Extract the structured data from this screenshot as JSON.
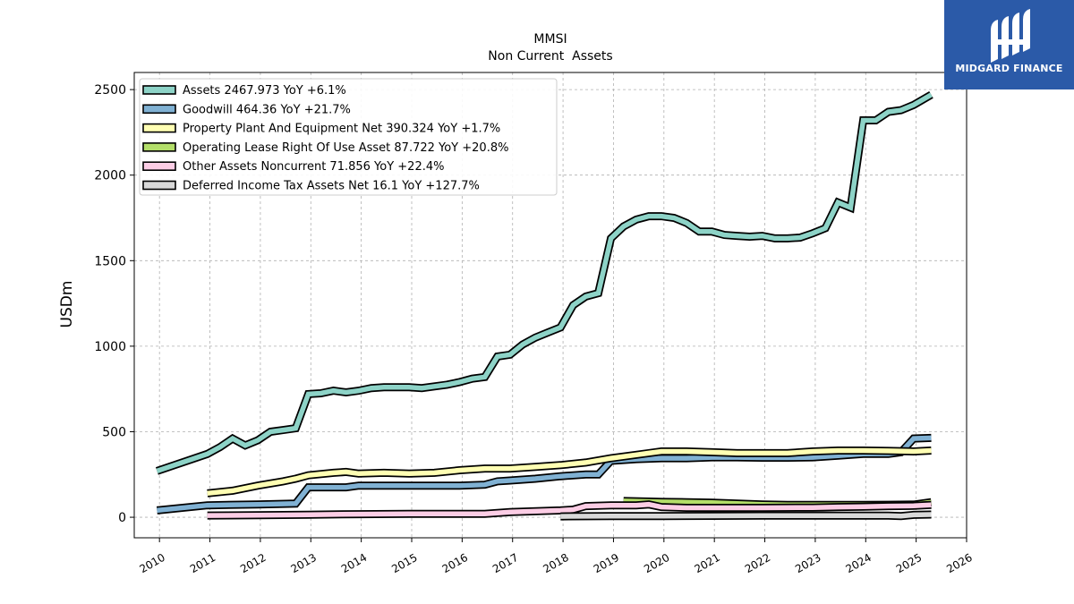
{
  "logo": {
    "text": "MIDGARD FINANCE"
  },
  "chart_data": {
    "type": "line",
    "title": "MMSI",
    "subtitle": "Non Current  Assets",
    "ylabel": "USDm",
    "xlabel": "",
    "xlim": [
      2009.5,
      2026.0
    ],
    "ylim": [
      -120,
      2600
    ],
    "xticks": [
      2010,
      2011,
      2012,
      2013,
      2014,
      2015,
      2016,
      2017,
      2018,
      2019,
      2020,
      2021,
      2022,
      2023,
      2024,
      2025,
      2026
    ],
    "yticks": [
      0,
      500,
      1000,
      1500,
      2000,
      2500
    ],
    "grid": true,
    "legend_position": "top-left",
    "series": [
      {
        "name": "Assets",
        "legend": "Assets  2467.973 YoY +6.1%",
        "color": "#8dd3c7",
        "points": [
          [
            2009.95,
            270
          ],
          [
            2010.95,
            370
          ],
          [
            2011.2,
            410
          ],
          [
            2011.45,
            460
          ],
          [
            2011.7,
            420
          ],
          [
            2011.95,
            450
          ],
          [
            2012.2,
            500
          ],
          [
            2012.45,
            510
          ],
          [
            2012.7,
            520
          ],
          [
            2012.95,
            720
          ],
          [
            2013.2,
            725
          ],
          [
            2013.45,
            740
          ],
          [
            2013.7,
            730
          ],
          [
            2013.95,
            740
          ],
          [
            2014.2,
            755
          ],
          [
            2014.45,
            760
          ],
          [
            2014.7,
            760
          ],
          [
            2014.95,
            760
          ],
          [
            2015.2,
            755
          ],
          [
            2015.45,
            765
          ],
          [
            2015.7,
            775
          ],
          [
            2015.95,
            790
          ],
          [
            2016.2,
            810
          ],
          [
            2016.45,
            820
          ],
          [
            2016.7,
            940
          ],
          [
            2016.95,
            950
          ],
          [
            2017.2,
            1010
          ],
          [
            2017.45,
            1050
          ],
          [
            2017.7,
            1080
          ],
          [
            2017.95,
            1110
          ],
          [
            2018.2,
            1240
          ],
          [
            2018.45,
            1290
          ],
          [
            2018.7,
            1310
          ],
          [
            2018.95,
            1630
          ],
          [
            2019.2,
            1700
          ],
          [
            2019.45,
            1740
          ],
          [
            2019.7,
            1760
          ],
          [
            2019.95,
            1760
          ],
          [
            2020.2,
            1750
          ],
          [
            2020.45,
            1720
          ],
          [
            2020.7,
            1670
          ],
          [
            2020.95,
            1670
          ],
          [
            2021.2,
            1650
          ],
          [
            2021.45,
            1645
          ],
          [
            2021.7,
            1640
          ],
          [
            2021.95,
            1645
          ],
          [
            2022.2,
            1630
          ],
          [
            2022.45,
            1630
          ],
          [
            2022.7,
            1635
          ],
          [
            2022.95,
            1660
          ],
          [
            2023.2,
            1690
          ],
          [
            2023.45,
            1840
          ],
          [
            2023.7,
            1810
          ],
          [
            2023.95,
            2320
          ],
          [
            2024.2,
            2320
          ],
          [
            2024.45,
            2370
          ],
          [
            2024.7,
            2380
          ],
          [
            2024.95,
            2410
          ],
          [
            2025.3,
            2470
          ]
        ]
      },
      {
        "name": "Goodwill",
        "legend": "Goodwill  464.36 YoY +21.7%",
        "color": "#80b1d3",
        "points": [
          [
            2009.95,
            40
          ],
          [
            2010.95,
            70
          ],
          [
            2011.95,
            75
          ],
          [
            2012.7,
            80
          ],
          [
            2012.95,
            175
          ],
          [
            2013.7,
            175
          ],
          [
            2013.95,
            185
          ],
          [
            2014.95,
            185
          ],
          [
            2015.95,
            185
          ],
          [
            2016.45,
            190
          ],
          [
            2016.7,
            210
          ],
          [
            2016.95,
            215
          ],
          [
            2017.45,
            225
          ],
          [
            2017.95,
            240
          ],
          [
            2018.45,
            250
          ],
          [
            2018.7,
            250
          ],
          [
            2018.95,
            330
          ],
          [
            2019.45,
            340
          ],
          [
            2019.95,
            345
          ],
          [
            2020.45,
            345
          ],
          [
            2020.95,
            350
          ],
          [
            2021.45,
            350
          ],
          [
            2021.95,
            348
          ],
          [
            2022.45,
            348
          ],
          [
            2022.95,
            350
          ],
          [
            2023.45,
            360
          ],
          [
            2023.95,
            370
          ],
          [
            2024.45,
            370
          ],
          [
            2024.7,
            380
          ],
          [
            2024.95,
            460
          ],
          [
            2025.3,
            464
          ]
        ]
      },
      {
        "name": "Property Plant And Equipment Net",
        "legend": "Property Plant And Equipment Net  390.324 YoY +1.7%",
        "color": "#ffffb3",
        "points": [
          [
            2010.95,
            140
          ],
          [
            2011.45,
            155
          ],
          [
            2011.95,
            185
          ],
          [
            2012.45,
            210
          ],
          [
            2012.7,
            225
          ],
          [
            2012.95,
            245
          ],
          [
            2013.45,
            260
          ],
          [
            2013.7,
            265
          ],
          [
            2013.95,
            255
          ],
          [
            2014.45,
            260
          ],
          [
            2014.95,
            255
          ],
          [
            2015.45,
            260
          ],
          [
            2015.95,
            275
          ],
          [
            2016.45,
            285
          ],
          [
            2016.95,
            285
          ],
          [
            2017.45,
            295
          ],
          [
            2017.95,
            305
          ],
          [
            2018.45,
            320
          ],
          [
            2018.95,
            345
          ],
          [
            2019.45,
            365
          ],
          [
            2019.7,
            375
          ],
          [
            2019.95,
            385
          ],
          [
            2020.45,
            385
          ],
          [
            2020.95,
            380
          ],
          [
            2021.45,
            375
          ],
          [
            2021.95,
            375
          ],
          [
            2022.45,
            375
          ],
          [
            2022.95,
            385
          ],
          [
            2023.45,
            390
          ],
          [
            2023.95,
            390
          ],
          [
            2024.45,
            388
          ],
          [
            2024.95,
            385
          ],
          [
            2025.3,
            390
          ]
        ]
      },
      {
        "name": "Operating Lease Right Of Use Asset",
        "legend": "Operating Lease Right Of Use Asset  87.722 YoY +20.8%",
        "color": "#b3de69",
        "points": [
          [
            2019.2,
            95
          ],
          [
            2019.7,
            92
          ],
          [
            2019.95,
            90
          ],
          [
            2020.45,
            88
          ],
          [
            2020.95,
            85
          ],
          [
            2021.45,
            80
          ],
          [
            2021.95,
            75
          ],
          [
            2022.45,
            72
          ],
          [
            2022.95,
            72
          ],
          [
            2023.45,
            72
          ],
          [
            2023.95,
            72
          ],
          [
            2024.45,
            73
          ],
          [
            2024.95,
            74
          ],
          [
            2025.3,
            88
          ]
        ]
      },
      {
        "name": "Other Assets Noncurrent",
        "legend": "Other Assets Noncurrent  71.856 YoY +22.4%",
        "color": "#fccde5",
        "points": [
          [
            2010.95,
            10
          ],
          [
            2011.95,
            12
          ],
          [
            2012.95,
            15
          ],
          [
            2013.95,
            18
          ],
          [
            2014.95,
            20
          ],
          [
            2015.95,
            20
          ],
          [
            2016.45,
            20
          ],
          [
            2016.95,
            30
          ],
          [
            2017.95,
            40
          ],
          [
            2018.2,
            45
          ],
          [
            2018.45,
            65
          ],
          [
            2018.95,
            70
          ],
          [
            2019.45,
            70
          ],
          [
            2019.7,
            75
          ],
          [
            2019.95,
            60
          ],
          [
            2020.45,
            55
          ],
          [
            2020.95,
            55
          ],
          [
            2021.95,
            55
          ],
          [
            2022.95,
            57
          ],
          [
            2023.45,
            60
          ],
          [
            2023.95,
            62
          ],
          [
            2024.45,
            65
          ],
          [
            2024.95,
            67
          ],
          [
            2025.3,
            72
          ]
        ]
      },
      {
        "name": "Deferred Income Tax Assets Net",
        "legend": "Deferred Income Tax Assets Net  16.1 YoY +127.7%",
        "color": "#d9d9d9",
        "points": [
          [
            2017.95,
            5
          ],
          [
            2018.95,
            7
          ],
          [
            2019.95,
            7
          ],
          [
            2020.95,
            8
          ],
          [
            2021.95,
            9
          ],
          [
            2022.95,
            9
          ],
          [
            2023.95,
            9
          ],
          [
            2024.45,
            9
          ],
          [
            2024.7,
            7
          ],
          [
            2024.95,
            14
          ],
          [
            2025.3,
            16
          ]
        ]
      }
    ]
  }
}
